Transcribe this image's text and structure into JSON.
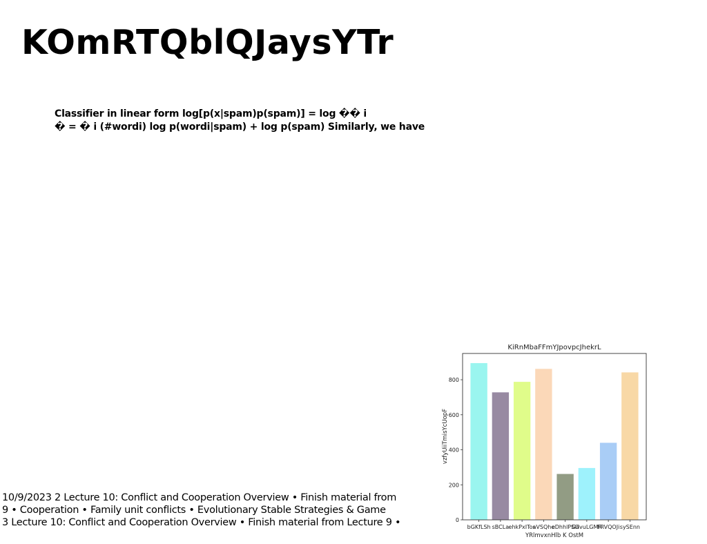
{
  "slide": {
    "title": "KOmRTQblQJaysYTr",
    "formula_lines": [
      "Classifier in linear form log[p(x|spam)p(spam)] = log �� i",
      "� = � i (#wordi) log p(wordi|spam) + log p(spam) Similarly, we have"
    ],
    "footer_lines": [
      "10/9/2023 2 Lecture 10: Conflict and Cooperation Overview • Finish material from",
      "9 • Cooperation • Family unit conflicts • Evolutionary Stable Strategies & Game",
      "3 Lecture 10: Conflict and Cooperation Overview • Finish material from Lecture 9 •"
    ]
  },
  "chart_data": {
    "type": "bar",
    "title": "KiRnMbaFFmYJpovpcJhekrL",
    "xlabel": "YRlmvxnHlb K OstM",
    "ylabel": "vzfyUiiTmisYcUopF",
    "categories": [
      "bGKfLSh",
      "sBCLa",
      "ehkPxITos",
      "aVSQhe",
      "eDhhlPSG",
      "GdvuLGMR",
      "FRVQOJi",
      "sySEnn"
    ],
    "values": [
      895,
      728,
      788,
      862,
      262,
      296,
      440,
      842
    ],
    "colors": [
      "#9af5ef",
      "#988aa2",
      "#e0fc8a",
      "#fbd8b8",
      "#929c84",
      "#9ef2fc",
      "#a9cdf6",
      "#f8d8a6"
    ],
    "ylim": [
      0,
      950
    ],
    "yticks": [
      0,
      200,
      400,
      600,
      800
    ],
    "grid": false
  }
}
